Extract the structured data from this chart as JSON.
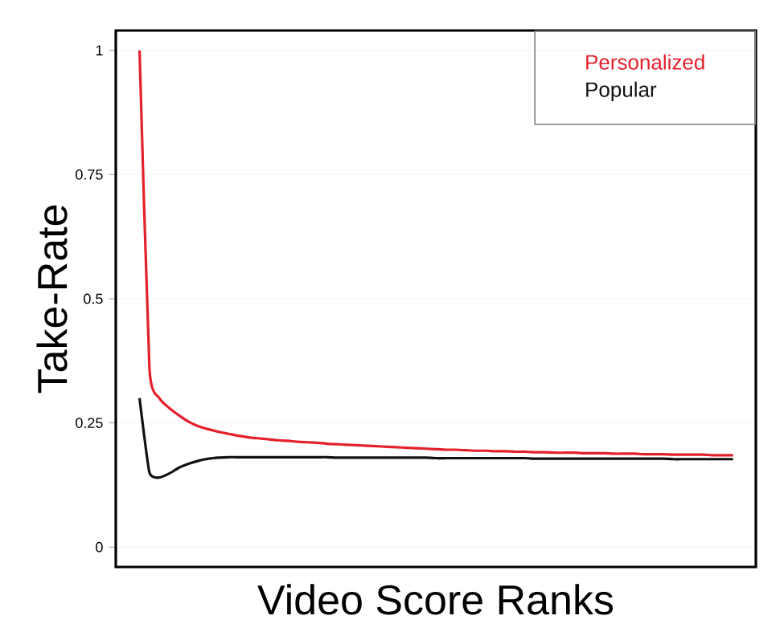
{
  "chart_data": {
    "type": "line",
    "xlabel": "Video Score Ranks",
    "ylabel": "Take-Rate",
    "categories": [
      null,
      null,
      null,
      null,
      null,
      null,
      null,
      null,
      null,
      null,
      null,
      null,
      null,
      null,
      null,
      null,
      null,
      null,
      null,
      null,
      null,
      null,
      null,
      null,
      null,
      null,
      null,
      null,
      null,
      null,
      null,
      null,
      null,
      null,
      null,
      null,
      null,
      null,
      null,
      null,
      null,
      null,
      null,
      null,
      null,
      null,
      null,
      null,
      null,
      null,
      null,
      null,
      null,
      null,
      null,
      null,
      null,
      null,
      null,
      null,
      null
    ],
    "ylim": [
      -0.04,
      1.04
    ],
    "yticks": [
      0,
      0.25,
      0.5,
      0.75,
      1
    ],
    "grid": "y",
    "legend": "top right",
    "marker": "none",
    "line_style": "solid",
    "series": [
      {
        "name": "Personalized",
        "color": "#e3202c",
        "values": [
          1.0,
          0.36,
          0.3,
          0.28,
          0.265,
          0.252,
          0.243,
          0.237,
          0.232,
          0.228,
          0.224,
          0.221,
          0.219,
          0.217,
          0.215,
          0.214,
          0.212,
          0.211,
          0.21,
          0.208,
          0.207,
          0.206,
          0.205,
          0.204,
          0.203,
          0.202,
          0.201,
          0.2,
          0.199,
          0.198,
          0.197,
          0.196,
          0.196,
          0.195,
          0.194,
          0.194,
          0.193,
          0.193,
          0.192,
          0.192,
          0.191,
          0.191,
          0.19,
          0.19,
          0.19,
          0.189,
          0.189,
          0.189,
          0.188,
          0.188,
          0.188,
          0.187,
          0.187,
          0.187,
          0.186,
          0.186,
          0.186,
          0.186,
          0.185,
          0.185,
          0.185
        ]
      },
      {
        "name": "Popular",
        "color": "#111111",
        "values": [
          0.3,
          0.15,
          0.14,
          0.148,
          0.16,
          0.168,
          0.174,
          0.178,
          0.18,
          0.181,
          0.181,
          0.181,
          0.181,
          0.181,
          0.181,
          0.181,
          0.181,
          0.181,
          0.181,
          0.181,
          0.18,
          0.18,
          0.18,
          0.18,
          0.18,
          0.18,
          0.18,
          0.18,
          0.18,
          0.18,
          0.179,
          0.179,
          0.179,
          0.179,
          0.179,
          0.179,
          0.179,
          0.179,
          0.179,
          0.179,
          0.178,
          0.178,
          0.178,
          0.178,
          0.178,
          0.178,
          0.178,
          0.178,
          0.178,
          0.178,
          0.178,
          0.178,
          0.178,
          0.178,
          0.177,
          0.177,
          0.177,
          0.177,
          0.177,
          0.177,
          0.177
        ]
      }
    ]
  }
}
